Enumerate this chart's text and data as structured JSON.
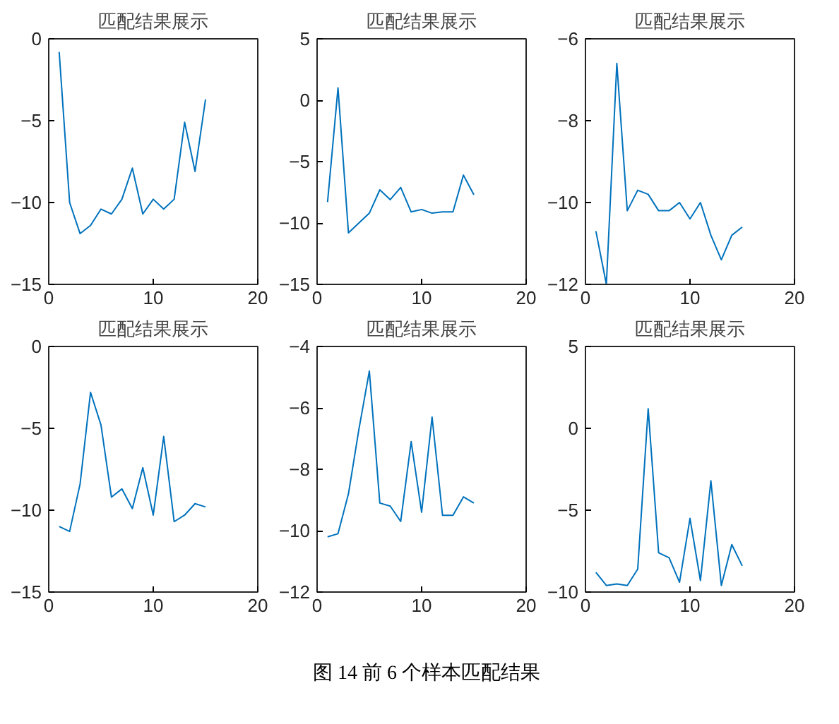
{
  "chart_data": [
    {
      "type": "line",
      "title": "匹配结果展示",
      "x": [
        1,
        2,
        3,
        4,
        5,
        6,
        7,
        8,
        9,
        10,
        11,
        12,
        13,
        14,
        15
      ],
      "series": [
        {
          "color": "#0072bd",
          "values": [
            -0.8,
            -10,
            -11.9,
            -11.4,
            -10.4,
            -10.7,
            -9.8,
            -7.9,
            -10.7,
            -9.8,
            -10.4,
            -9.8,
            -5.1,
            -8.1,
            -3.7
          ]
        }
      ],
      "xlim": [
        0,
        20
      ],
      "xticks": [
        0,
        10,
        20
      ],
      "ylim": [
        -15,
        0
      ],
      "yticks": [
        -15,
        -10,
        -5,
        0
      ]
    },
    {
      "type": "line",
      "title": "匹配结果展示",
      "x": [
        1,
        2,
        3,
        4,
        5,
        6,
        7,
        8,
        9,
        10,
        11,
        12,
        13,
        14,
        15
      ],
      "series": [
        {
          "color": "#0072bd",
          "values": [
            -8.3,
            1.0,
            -10.8,
            -10.0,
            -9.2,
            -7.3,
            -8.1,
            -7.1,
            -9.1,
            -8.9,
            -9.2,
            -9.1,
            -9.1,
            -6.1,
            -7.7
          ]
        }
      ],
      "xlim": [
        0,
        20
      ],
      "xticks": [
        0,
        10,
        20
      ],
      "ylim": [
        -15,
        5
      ],
      "yticks": [
        -15,
        -10,
        -5,
        0,
        5
      ]
    },
    {
      "type": "line",
      "title": "匹配结果展示",
      "x": [
        1,
        2,
        3,
        4,
        5,
        6,
        7,
        8,
        9,
        10,
        11,
        12,
        13,
        14,
        15
      ],
      "series": [
        {
          "color": "#0072bd",
          "values": [
            -10.7,
            -12,
            -6.6,
            -10.2,
            -9.7,
            -9.8,
            -10.2,
            -10.2,
            -10.0,
            -10.4,
            -10.0,
            -10.8,
            -11.4,
            -10.8,
            -10.6
          ]
        }
      ],
      "xlim": [
        0,
        20
      ],
      "xticks": [
        0,
        10,
        20
      ],
      "ylim": [
        -12,
        -6
      ],
      "yticks": [
        -12,
        -10,
        -8,
        -6
      ]
    },
    {
      "type": "line",
      "title": "匹配结果展示",
      "x": [
        1,
        2,
        3,
        4,
        5,
        6,
        7,
        8,
        9,
        10,
        11,
        12,
        13,
        14,
        15
      ],
      "series": [
        {
          "color": "#0072bd",
          "values": [
            -11.0,
            -11.3,
            -8.4,
            -2.8,
            -4.8,
            -9.2,
            -8.7,
            -9.9,
            -7.4,
            -10.3,
            -5.5,
            -10.7,
            -10.3,
            -9.6,
            -9.8
          ]
        }
      ],
      "xlim": [
        0,
        20
      ],
      "xticks": [
        0,
        10,
        20
      ],
      "ylim": [
        -15,
        0
      ],
      "yticks": [
        -15,
        -10,
        -5,
        0
      ]
    },
    {
      "type": "line",
      "title": "匹配结果展示",
      "x": [
        1,
        2,
        3,
        4,
        5,
        6,
        7,
        8,
        9,
        10,
        11,
        12,
        13,
        14,
        15
      ],
      "series": [
        {
          "color": "#0072bd",
          "values": [
            -10.2,
            -10.1,
            -8.8,
            -6.7,
            -4.8,
            -9.1,
            -9.2,
            -9.7,
            -7.1,
            -9.4,
            -6.3,
            -9.5,
            -9.5,
            -8.9,
            -9.1
          ]
        }
      ],
      "xlim": [
        0,
        20
      ],
      "xticks": [
        0,
        10,
        20
      ],
      "ylim": [
        -12,
        -4
      ],
      "yticks": [
        -12,
        -10,
        -8,
        -6,
        -4
      ]
    },
    {
      "type": "line",
      "title": "匹配结果展示",
      "x": [
        1,
        2,
        3,
        4,
        5,
        6,
        7,
        8,
        9,
        10,
        11,
        12,
        13,
        14,
        15
      ],
      "series": [
        {
          "color": "#0072bd",
          "values": [
            -8.8,
            -9.6,
            -9.5,
            -9.6,
            -8.6,
            1.2,
            -7.6,
            -7.9,
            -9.4,
            -5.5,
            -9.3,
            -3.2,
            -9.6,
            -7.1,
            -8.4
          ]
        }
      ],
      "xlim": [
        0,
        20
      ],
      "xticks": [
        0,
        10,
        20
      ],
      "ylim": [
        -10,
        5
      ],
      "yticks": [
        -10,
        -5,
        0,
        5
      ],
      "annotations": [
        "图 14 前 6 个样本匹配结果"
      ]
    }
  ]
}
